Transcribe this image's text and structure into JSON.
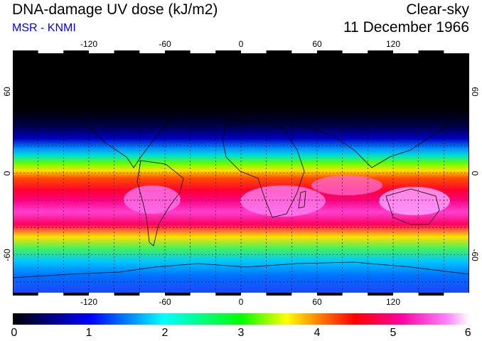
{
  "header": {
    "title": "DNA-damage UV dose (kJ/m2)",
    "subtitle": "MSR - KNMI",
    "condition": "Clear-sky",
    "date": "11 December 1966"
  },
  "map": {
    "projection": "equirectangular",
    "lon_range": [
      -180,
      180
    ],
    "lat_range": [
      -90,
      90
    ],
    "lon_ticks": [
      {
        "value": -120,
        "label": "-120"
      },
      {
        "value": -60,
        "label": "-60"
      },
      {
        "value": 0,
        "label": "0"
      },
      {
        "value": 60,
        "label": "60"
      },
      {
        "value": 120,
        "label": "120"
      }
    ],
    "lat_ticks": [
      {
        "value": 60,
        "label": "60"
      },
      {
        "value": 0,
        "label": "0"
      },
      {
        "value": -60,
        "label": "-60"
      }
    ],
    "gridlines": "dashed every 20 degrees"
  },
  "colorbar": {
    "min": 0,
    "max": 6,
    "tick_labels": [
      "0",
      "1",
      "2",
      "3",
      "4",
      "5",
      "6"
    ],
    "colors": [
      "#000000",
      "#000080",
      "#0000ff",
      "#00ffff",
      "#00ff00",
      "#ffff00",
      "#ff8000",
      "#ff0000",
      "#ff00a0",
      "#ff80ff",
      "#ffffff"
    ]
  },
  "colors": {
    "title": "#000000",
    "subtitle": "#0000ff"
  }
}
